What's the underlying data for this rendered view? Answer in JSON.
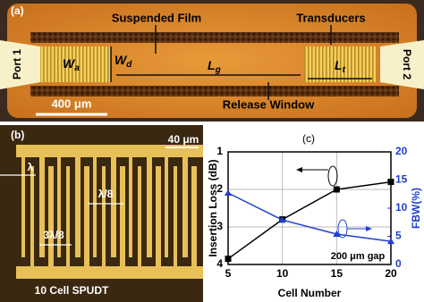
{
  "panel_a": {
    "label": "(a)",
    "suspended_film": "Suspended Film",
    "transducers": "Transducers",
    "port1": "Port 1",
    "port2": "Port 2",
    "wa": {
      "main": "W",
      "sub": "a"
    },
    "wd": {
      "main": "W",
      "sub": "d"
    },
    "lg": {
      "main": "L",
      "sub": "g"
    },
    "lt": {
      "main": "L",
      "sub": "t"
    },
    "scale": "400 μm",
    "release_window": "Release Window"
  },
  "panel_b": {
    "label": "(b)",
    "scale": "40 μm",
    "lambda": "λ",
    "lambda8": "λ/8",
    "three_lambda8": "3λ/8",
    "caption": "10 Cell SPUDT"
  },
  "chart_data": {
    "type": "line",
    "title": "(c)",
    "x_label": "Cell Number",
    "y_label": "Insertion Loss (dB)",
    "y2_label": "FBW(%)",
    "annotation": "200 μm gap",
    "x": [
      5,
      10,
      15,
      20
    ],
    "series": [
      {
        "color": "#000000",
        "marker": "square",
        "values": [
          3.85,
          2.8,
          2.0,
          1.8
        ]
      },
      {
        "color": "#1f3fd0",
        "marker": "triangle",
        "axis": "y2",
        "values": [
          12.7,
          7.9,
          5.4,
          4.1
        ]
      }
    ],
    "xlim": [
      5,
      20
    ],
    "xticks": [
      5,
      10,
      15,
      20
    ],
    "ylim": [
      4,
      1
    ],
    "yticks": [
      1,
      2,
      3,
      4
    ],
    "y2lim": [
      0,
      20
    ],
    "y2ticks": [
      0,
      5,
      10,
      15,
      20
    ],
    "grid": true
  }
}
